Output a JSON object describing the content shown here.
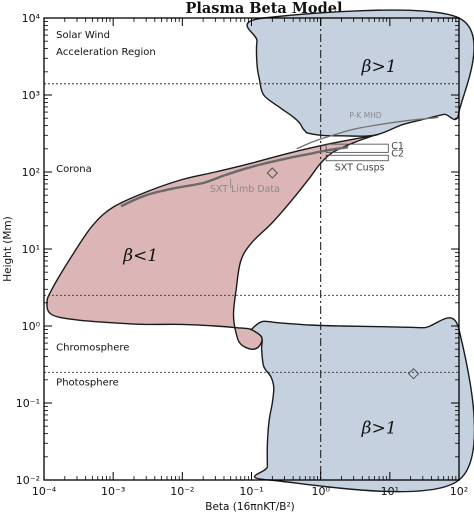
{
  "chart_data": {
    "type": "area",
    "title": "Plasma Beta Model",
    "xlabel": "Beta (16πnKT/B²)",
    "ylabel": "Height (Mm)",
    "xscale": "log",
    "yscale": "log",
    "xlim": [
      0.0001,
      100
    ],
    "ylim": [
      0.01,
      10000
    ],
    "x_ticks": [
      {
        "value": 0.0001,
        "label": "10⁻⁴"
      },
      {
        "value": 0.001,
        "label": "10⁻³"
      },
      {
        "value": 0.01,
        "label": "10⁻²"
      },
      {
        "value": 0.1,
        "label": "10⁻¹"
      },
      {
        "value": 1,
        "label": "10⁰"
      },
      {
        "value": 10,
        "label": "10¹"
      },
      {
        "value": 100,
        "label": "10²"
      }
    ],
    "y_ticks": [
      {
        "value": 0.01,
        "label": "10⁻²"
      },
      {
        "value": 0.1,
        "label": "10⁻¹"
      },
      {
        "value": 1,
        "label": "10⁰"
      },
      {
        "value": 10,
        "label": "10¹"
      },
      {
        "value": 100,
        "label": "10²"
      },
      {
        "value": 1000,
        "label": "10³"
      },
      {
        "value": 10000,
        "label": "10⁴"
      }
    ],
    "reference_lines": {
      "vertical_dashdot_x": 1,
      "horizontal_dotted_y": [
        1400,
        2.5,
        0.25
      ]
    },
    "region_labels": [
      {
        "text": "Solar Wind",
        "x": 0.00015,
        "y": 5500
      },
      {
        "text": "Acceleration Region",
        "x": 0.00015,
        "y": 3300
      },
      {
        "text": "Corona",
        "x": 0.00015,
        "y": 100
      },
      {
        "text": "Chromosphere",
        "x": 0.00015,
        "y": 0.48
      },
      {
        "text": "Photosphere",
        "x": 0.00015,
        "y": 0.17
      }
    ],
    "beta_labels": [
      {
        "text": "β>1",
        "x": 7,
        "y": 2000,
        "region": "upper"
      },
      {
        "text": "β<1",
        "x": 0.0025,
        "y": 7,
        "region": "middle"
      },
      {
        "text": "β>1",
        "x": 7,
        "y": 0.04,
        "region": "lower"
      }
    ],
    "annotations": [
      {
        "text": "P-K MHD",
        "x": 2.6,
        "y": 500
      },
      {
        "text": "SXT Limb Data",
        "x": 0.025,
        "y": 55
      },
      {
        "text": "SXT Cusps",
        "x": 1.6,
        "y": 105
      },
      {
        "text": "C1",
        "x": 10.5,
        "y": 200
      },
      {
        "text": "C2",
        "x": 10.5,
        "y": 160
      }
    ],
    "series": [
      {
        "region": "upper",
        "color": "#c5d1df",
        "boundary": [
          [
            0.15,
            10000
          ],
          [
            0.12,
            5000
          ],
          [
            0.12,
            2500
          ],
          [
            0.13,
            1600
          ],
          [
            0.15,
            1000
          ],
          [
            0.25,
            700
          ],
          [
            0.4,
            520
          ],
          [
            0.5,
            430
          ],
          [
            0.55,
            370
          ],
          [
            0.6,
            340
          ],
          [
            0.65,
            320
          ],
          [
            1,
            300
          ],
          [
            2,
            295
          ],
          [
            6,
            300
          ],
          [
            15,
            410
          ],
          [
            30,
            480
          ],
          [
            60,
            560
          ],
          [
            100,
            600
          ],
          [
            100,
            10000
          ]
        ]
      },
      {
        "region": "middle",
        "color": "#dcb6b6",
        "boundary": [
          [
            6,
            300
          ],
          [
            2,
            250
          ],
          [
            0.8,
            210
          ],
          [
            0.3,
            170
          ],
          [
            0.1,
            130
          ],
          [
            0.03,
            100
          ],
          [
            0.01,
            80
          ],
          [
            0.003,
            55
          ],
          [
            0.001,
            35
          ],
          [
            0.0005,
            20
          ],
          [
            0.00025,
            8
          ],
          [
            0.00013,
            3
          ],
          [
            0.00011,
            2
          ],
          [
            0.00013,
            1.4
          ],
          [
            0.0003,
            1.2
          ],
          [
            0.001,
            1.1
          ],
          [
            0.003,
            1.05
          ],
          [
            0.01,
            1.05
          ],
          [
            0.03,
            1.0
          ],
          [
            0.06,
            0.95
          ],
          [
            0.1,
            0.9
          ],
          [
            0.14,
            0.72
          ],
          [
            0.13,
            0.55
          ],
          [
            0.1,
            0.5
          ],
          [
            0.07,
            0.58
          ],
          [
            0.06,
            0.8
          ],
          [
            0.055,
            1.4
          ],
          [
            0.06,
            3
          ],
          [
            0.07,
            7
          ],
          [
            0.1,
            12
          ],
          [
            0.2,
            22
          ],
          [
            0.4,
            45
          ],
          [
            0.7,
            85
          ],
          [
            1,
            130
          ],
          [
            1.5,
            180
          ],
          [
            3,
            240
          ],
          [
            6,
            300
          ]
        ]
      },
      {
        "region": "lower",
        "color": "#c5d1df",
        "boundary": [
          [
            0.1,
            0.9
          ],
          [
            0.12,
            1.05
          ],
          [
            0.15,
            1.15
          ],
          [
            0.25,
            1.1
          ],
          [
            0.7,
            1.03
          ],
          [
            2,
            1.0
          ],
          [
            8,
            0.98
          ],
          [
            30,
            0.95
          ],
          [
            100,
            0.9
          ],
          [
            100,
            0.01
          ],
          [
            0.18,
            0.01
          ],
          [
            0.17,
            0.015
          ],
          [
            0.17,
            0.03
          ],
          [
            0.18,
            0.06
          ],
          [
            0.2,
            0.1
          ],
          [
            0.21,
            0.16
          ],
          [
            0.19,
            0.22
          ],
          [
            0.15,
            0.3
          ],
          [
            0.14,
            0.5
          ],
          [
            0.14,
            0.72
          ],
          [
            0.1,
            0.9
          ]
        ]
      }
    ],
    "curves": [
      {
        "name": "P-K MHD",
        "color": "#707070",
        "points": [
          [
            0.45,
            200
          ],
          [
            0.8,
            250
          ],
          [
            1.5,
            300
          ],
          [
            3,
            360
          ],
          [
            8,
            420
          ],
          [
            20,
            470
          ],
          [
            50,
            510
          ]
        ]
      },
      {
        "name": "SXT Limb Data",
        "color": "#6a6a6a",
        "points": [
          [
            0.0013,
            36
          ],
          [
            0.003,
            50
          ],
          [
            0.008,
            62
          ],
          [
            0.02,
            72
          ],
          [
            0.04,
            90
          ],
          [
            0.08,
            110
          ],
          [
            0.15,
            128
          ],
          [
            0.3,
            148
          ],
          [
            0.6,
            168
          ],
          [
            1.2,
            190
          ],
          [
            2.5,
            210
          ]
        ]
      }
    ],
    "markers": [
      {
        "shape": "diamond",
        "x": 0.2,
        "y": 97
      },
      {
        "shape": "diamond",
        "x": 22,
        "y": 0.24
      }
    ],
    "cusp_boxes": [
      {
        "label": "C1",
        "x0": 1.2,
        "x1": 9.5,
        "y0": 180,
        "y1": 230
      },
      {
        "label": "C2",
        "x0": 1.2,
        "x1": 9.5,
        "y0": 140,
        "y1": 165
      }
    ]
  }
}
